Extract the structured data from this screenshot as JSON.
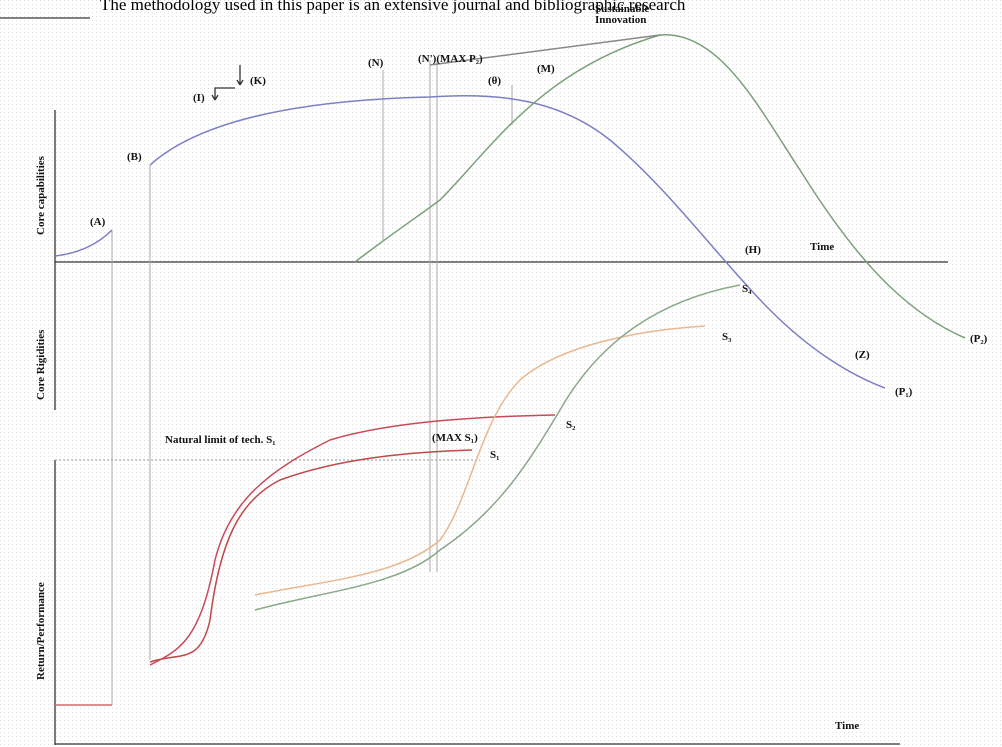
{
  "caption": "The methodology used in this paper is an extensive journal and bibliographic research",
  "labels": {
    "sustainable_innovation": [
      "Sustainable",
      "Innovation"
    ],
    "n_prime_max_p2": "(N')(MAX P₂)",
    "n": "(N)",
    "theta": "(θ)",
    "m": "(M)",
    "i": "(I)",
    "k": "(K)",
    "b": "(B)",
    "a": "(A)",
    "h": "(H)",
    "time_upper": "Time",
    "core_capabilities": "Core capabilities",
    "core_rigidities": "Core Rigidities",
    "p2": "(P₂)",
    "z": "(Z)",
    "p1": "(P₁)",
    "s4": "S₄",
    "s3": "S₃",
    "s2": "S₂",
    "s1": "S₁",
    "max_s1": "(MAX S₁)",
    "natural_limit": "Natural limit of tech. S₁",
    "return_performance": "Return/Performance",
    "time_lower": "Time"
  }
}
